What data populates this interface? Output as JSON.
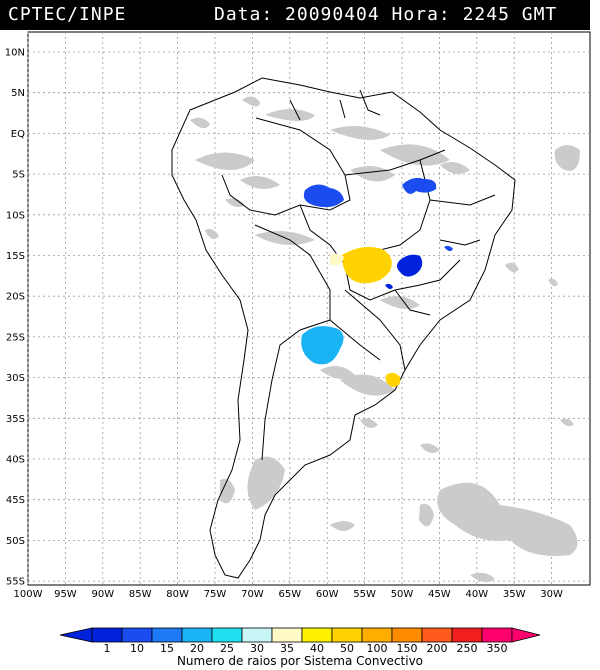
{
  "header": {
    "source": "CPTEC/INPE",
    "datetime": "Data: 20090404 Hora: 2245 GMT"
  },
  "lat_labels": [
    "10N",
    "5N",
    "EQ",
    "5S",
    "10S",
    "15S",
    "20S",
    "25S",
    "30S",
    "35S",
    "40S",
    "45S",
    "50S",
    "55S"
  ],
  "lon_labels": [
    "100W",
    "95W",
    "90W",
    "85W",
    "80W",
    "75W",
    "70W",
    "65W",
    "60W",
    "55W",
    "50W",
    "45W",
    "40W",
    "35W",
    "30W"
  ],
  "legend": {
    "levels": [
      "1",
      "10",
      "15",
      "20",
      "25",
      "30",
      "35",
      "40",
      "50",
      "100",
      "150",
      "200",
      "250",
      "350"
    ],
    "colors": [
      "#0022dd",
      "#1a4cf0",
      "#1e7af5",
      "#1ab4f5",
      "#20e0f0",
      "#c8f5f5",
      "#fff9c8",
      "#fff200",
      "#ffd200",
      "#ffad00",
      "#ff8c00",
      "#ff5a1e",
      "#f01e1e",
      "#ff006e"
    ],
    "caption": "Numero de raios por Sistema Convectivo"
  },
  "colors": {
    "cloud": "#cbcbcb",
    "grid": "#9a9a9a",
    "coast": "#000000",
    "header_bg": "#000000"
  }
}
